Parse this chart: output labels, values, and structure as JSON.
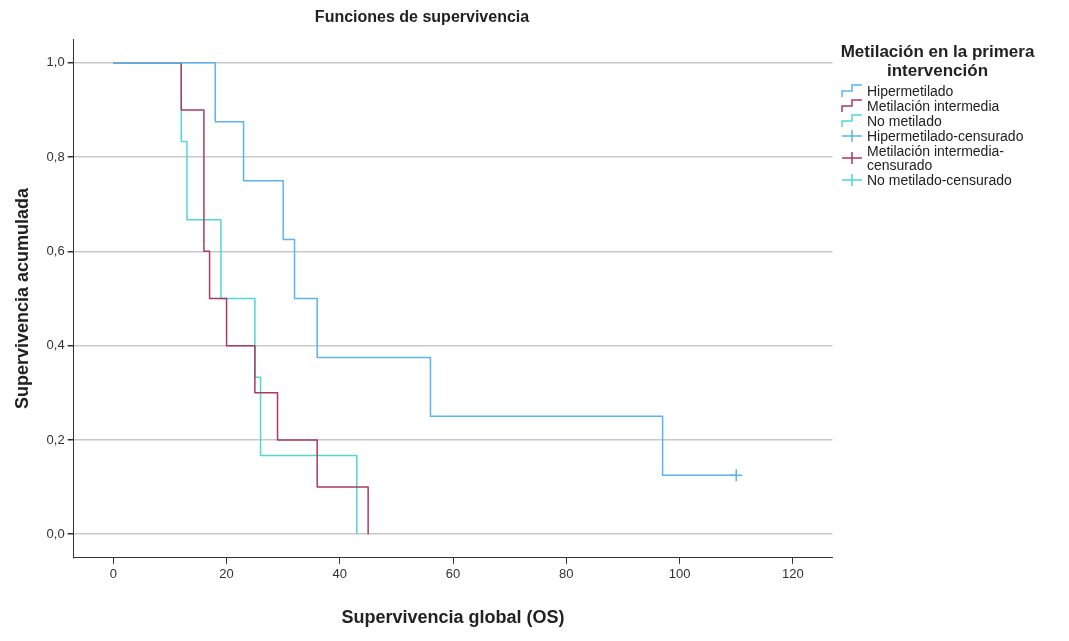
{
  "chart_data": {
    "type": "step",
    "title": "Funciones de supervivencia",
    "xlabel": "Supervivencia global (OS)",
    "ylabel": "Supervivencia acumulada",
    "legend_title": "Metilación en la primera intervención",
    "legend": "right",
    "grid": "y",
    "marker": "none",
    "line_style": "solid",
    "xlim": [
      -7,
      127
    ],
    "xticks": [
      0,
      20,
      40,
      60,
      80,
      100,
      120
    ],
    "ylim": [
      -0.05,
      1.05
    ],
    "yticks": [
      {
        "value": 0,
        "label": "0,0"
      },
      {
        "value": 0.2,
        "label": "0,2"
      },
      {
        "value": 0.4,
        "label": "0,4"
      },
      {
        "value": 0.6,
        "label": "0,6"
      },
      {
        "value": 0.8,
        "label": "0,8"
      },
      {
        "value": 1,
        "label": "1,0"
      }
    ],
    "series": [
      {
        "name": "Hipermetilado",
        "color": "#5ab4f0",
        "x": [
          0,
          18,
          23,
          30,
          32,
          36,
          56,
          97,
          110
        ],
        "values": [
          1,
          0.875,
          0.75,
          0.625,
          0.5,
          0.375,
          0.25,
          0.125,
          0.125
        ]
      },
      {
        "name": "Metilación intermedia",
        "color": "#a83b63",
        "x": [
          0,
          12,
          16,
          17,
          20,
          25,
          29,
          36,
          45
        ],
        "values": [
          1,
          0.9,
          0.6,
          0.5,
          0.4,
          0.3,
          0.2,
          0.1,
          0
        ]
      },
      {
        "name": "No metilado",
        "color": "#52d6d6",
        "x": [
          0,
          12,
          13,
          19,
          25,
          26,
          43
        ],
        "values": [
          1,
          0.833,
          0.667,
          0.5,
          0.333,
          0.167,
          0
        ]
      },
      {
        "name": "Hipermetilado-censurado",
        "type": "scatter",
        "marker": "cross",
        "color": "#5ab4f0",
        "x": [
          110
        ],
        "values": [
          0.125
        ]
      },
      {
        "name": "Metilación intermedia-censurado",
        "type": "scatter",
        "marker": "cross",
        "color": "#a83b63"
      },
      {
        "name": "No metilado-censurado",
        "type": "scatter",
        "marker": "cross",
        "color": "#52d6d6"
      }
    ]
  }
}
